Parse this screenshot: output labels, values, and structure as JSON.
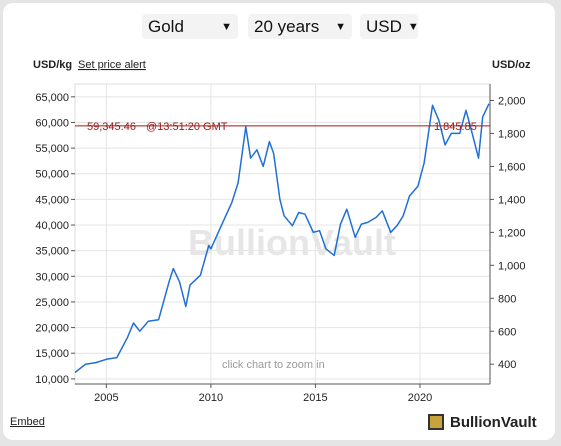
{
  "controls": {
    "metal": "Gold",
    "period": "20 years",
    "currency": "USD"
  },
  "header": {
    "left_unit": "USD/kg",
    "alert_link": "Set price alert",
    "right_unit": "USD/oz"
  },
  "annotation": {
    "price_kg": "59,345.46",
    "time": "@13:51:20 GMT",
    "price_oz": "1,845.85"
  },
  "watermark": "BullionVault",
  "zoom_hint": "click chart to zoom in",
  "embed": "Embed",
  "logo": "BullionVault",
  "colors": {
    "series": "#1f6fd6",
    "current_line": "#a01818",
    "grid": "#e4e4e4"
  },
  "chart_data": {
    "type": "line",
    "series": [
      {
        "name": "Gold price",
        "x": [
          2003.5,
          2004.0,
          2004.5,
          2005.0,
          2005.5,
          2006.0,
          2006.3,
          2006.6,
          2007.0,
          2007.5,
          2008.0,
          2008.2,
          2008.5,
          2008.8,
          2009.0,
          2009.5,
          2009.9,
          2010.0,
          2010.5,
          2011.0,
          2011.3,
          2011.67,
          2011.9,
          2012.2,
          2012.5,
          2012.8,
          2013.0,
          2013.3,
          2013.5,
          2013.9,
          2014.2,
          2014.5,
          2014.9,
          2015.2,
          2015.5,
          2015.9,
          2016.2,
          2016.5,
          2016.9,
          2017.2,
          2017.5,
          2017.9,
          2018.2,
          2018.6,
          2018.9,
          2019.2,
          2019.5,
          2019.9,
          2020.2,
          2020.6,
          2020.9,
          2021.2,
          2021.5,
          2021.9,
          2022.2,
          2022.5,
          2022.8,
          2023.0,
          2023.3
        ],
        "y_oz": [
          350,
          400,
          410,
          430,
          440,
          560,
          650,
          600,
          660,
          670,
          900,
          980,
          900,
          750,
          880,
          940,
          1120,
          1100,
          1240,
          1380,
          1500,
          1840,
          1650,
          1700,
          1600,
          1750,
          1680,
          1400,
          1300,
          1240,
          1320,
          1310,
          1200,
          1210,
          1100,
          1060,
          1250,
          1340,
          1170,
          1250,
          1260,
          1290,
          1330,
          1200,
          1240,
          1300,
          1420,
          1480,
          1620,
          1970,
          1880,
          1730,
          1800,
          1800,
          1940,
          1800,
          1650,
          1900,
          1980
        ],
        "y_kg": [
          11250,
          12860,
          13180,
          13820,
          14150,
          18000,
          20900,
          19290,
          21220,
          21540,
          28940,
          31510,
          28940,
          24110,
          28290,
          30220,
          36010,
          35370,
          39870,
          44370,
          48230,
          59150,
          53050,
          54660,
          51440,
          56270,
          54010,
          45010,
          41800,
          39870,
          42440,
          42120,
          38580,
          38900,
          35370,
          34080,
          40190,
          43080,
          37610,
          40190,
          40510,
          41480,
          42760,
          38580,
          39870,
          41800,
          45660,
          47580,
          52080,
          63340,
          60440,
          55620,
          57870,
          57870,
          62370,
          57870,
          53050,
          61090,
          63660
        ]
      }
    ],
    "current": {
      "price_kg": 59345.46,
      "price_oz": 1845.85
    },
    "x_ticks": [
      "2005",
      "2010",
      "2015",
      "2020"
    ],
    "y_left_ticks": [
      "10,000",
      "15,000",
      "20,000",
      "25,000",
      "30,000",
      "35,000",
      "40,000",
      "45,000",
      "50,000",
      "55,000",
      "60,000",
      "65,000"
    ],
    "y_right_ticks": [
      "400",
      "600",
      "800",
      "1,000",
      "1,200",
      "1,400",
      "1,600",
      "1,800",
      "2,000"
    ],
    "xlim": [
      2003.5,
      2023.35
    ],
    "ylim_kg": [
      9000,
      67500
    ],
    "ylim_oz": [
      280,
      2100
    ],
    "ylabel_left": "USD/kg",
    "ylabel_right": "USD/oz",
    "grid": true,
    "legend": "none"
  }
}
